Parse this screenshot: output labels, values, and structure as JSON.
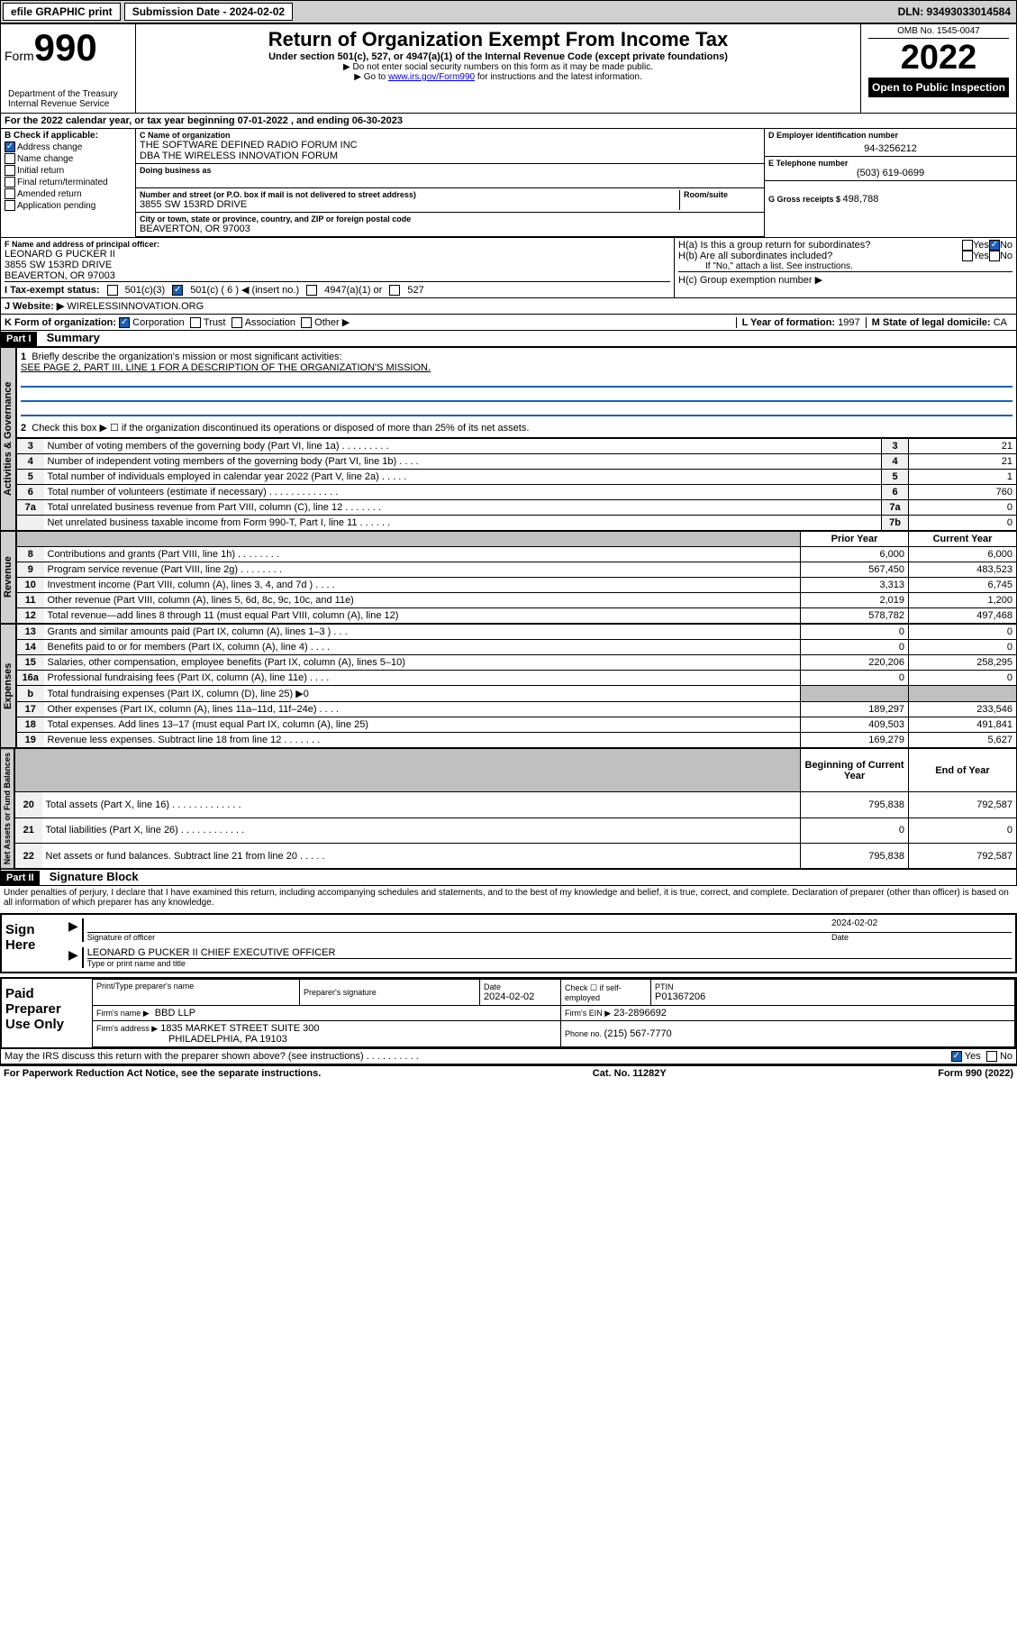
{
  "topbar": {
    "efile": "efile GRAPHIC print",
    "submission_label": "Submission Date - 2024-02-02",
    "dln_label": "DLN: 93493033014584"
  },
  "header": {
    "form_label": "Form",
    "form_num": "990",
    "title": "Return of Organization Exempt From Income Tax",
    "subtitle": "Under section 501(c), 527, or 4947(a)(1) of the Internal Revenue Code (except private foundations)",
    "note1": "▶ Do not enter social security numbers on this form as it may be made public.",
    "note2_pre": "▶ Go to ",
    "note2_link": "www.irs.gov/Form990",
    "note2_post": " for instructions and the latest information.",
    "dept": "Department of the Treasury\nInternal Revenue Service",
    "omb": "OMB No. 1545-0047",
    "year": "2022",
    "open_public": "Open to Public Inspection"
  },
  "section_a": {
    "period": "For the 2022 calendar year, or tax year beginning 07-01-2022 , and ending 06-30-2023",
    "check_label": "B Check if applicable:",
    "checks": [
      "Address change",
      "Name change",
      "Initial return",
      "Final return/terminated",
      "Amended return",
      "Application pending"
    ],
    "check_states": [
      "true",
      "false",
      "false",
      "false",
      "false",
      "false"
    ],
    "c_label": "C Name of organization",
    "org_name": "THE SOFTWARE DEFINED RADIO FORUM INC",
    "dba": "DBA THE WIRELESS INNOVATION FORUM",
    "dba_label": "Doing business as",
    "street_label": "Number and street (or P.O. box if mail is not delivered to street address)",
    "room_label": "Room/suite",
    "street": "3855 SW 153RD DRIVE",
    "city_label": "City or town, state or province, country, and ZIP or foreign postal code",
    "city": "BEAVERTON, OR  97003",
    "d_label": "D Employer identification number",
    "ein": "94-3256212",
    "e_label": "E Telephone number",
    "phone": "(503) 619-0699",
    "g_label": "G Gross receipts $ ",
    "gross": "498,788",
    "f_label": "F Name and address of principal officer:",
    "officer_name": "LEONARD G PUCKER II",
    "officer_addr1": "3855 SW 153RD DRIVE",
    "officer_addr2": "BEAVERTON, OR  97003",
    "ha_label": "H(a)  Is this a group return for subordinates?",
    "hb_label": "H(b)  Are all subordinates included?",
    "hb_note": "If \"No,\" attach a list. See instructions.",
    "hc_label": "H(c)  Group exemption number ▶",
    "yes": "Yes",
    "no": "No"
  },
  "tax_status": {
    "i_label": "I  Tax-exempt status:",
    "opt1": "501(c)(3)",
    "opt2": "501(c) ( 6 ) ◀ (insert no.)",
    "opt3": "4947(a)(1) or",
    "opt4": "527",
    "j_label": "J  Website: ▶",
    "website": "WIRELESSINNOVATION.ORG"
  },
  "form_org": {
    "k_label": "K Form of organization:",
    "opts": [
      "Corporation",
      "Trust",
      "Association",
      "Other ▶"
    ],
    "l_label": "L Year of formation: ",
    "l_val": "1997",
    "m_label": "M State of legal domicile: ",
    "m_val": "CA"
  },
  "part1": {
    "header": "Part I",
    "title": "Summary",
    "q1": "Briefly describe the organization's mission or most significant activities:",
    "q1_ans": "SEE PAGE 2, PART III, LINE 1 FOR A DESCRIPTION OF THE ORGANIZATION'S MISSION.",
    "q2": "Check this box ▶ ☐  if the organization discontinued its operations or disposed of more than 25% of its net assets.",
    "vert1": "Activities & Governance",
    "vert2": "Revenue",
    "vert3": "Expenses",
    "vert4": "Net Assets or Fund Balances",
    "gov_rows": [
      {
        "n": "3",
        "t": "Number of voting members of the governing body (Part VI, line 1a)  .  .  .  .  .  .  .  .  .",
        "c": "3",
        "v": "21"
      },
      {
        "n": "4",
        "t": "Number of independent voting members of the governing body (Part VI, line 1b)  .  .  .  .",
        "c": "4",
        "v": "21"
      },
      {
        "n": "5",
        "t": "Total number of individuals employed in calendar year 2022 (Part V, line 2a)  .  .  .  .  .",
        "c": "5",
        "v": "1"
      },
      {
        "n": "6",
        "t": "Total number of volunteers (estimate if necessary)  .  .  .  .  .  .  .  .  .  .  .  .  .",
        "c": "6",
        "v": "760"
      },
      {
        "n": "7a",
        "t": "Total unrelated business revenue from Part VIII, column (C), line 12  .  .  .  .  .  .  .",
        "c": "7a",
        "v": "0"
      },
      {
        "n": "",
        "t": "Net unrelated business taxable income from Form 990-T, Part I, line 11  .  .  .  .  .  .",
        "c": "7b",
        "v": "0"
      }
    ],
    "two_col_header": {
      "py": "Prior Year",
      "cy": "Current Year"
    },
    "rev_rows": [
      {
        "n": "8",
        "t": "Contributions and grants (Part VIII, line 1h)  .  .  .  .  .  .  .  .",
        "py": "6,000",
        "cy": "6,000"
      },
      {
        "n": "9",
        "t": "Program service revenue (Part VIII, line 2g)  .  .  .  .  .  .  .  .",
        "py": "567,450",
        "cy": "483,523"
      },
      {
        "n": "10",
        "t": "Investment income (Part VIII, column (A), lines 3, 4, and 7d )  .  .  .  .",
        "py": "3,313",
        "cy": "6,745"
      },
      {
        "n": "11",
        "t": "Other revenue (Part VIII, column (A), lines 5, 6d, 8c, 9c, 10c, and 11e)",
        "py": "2,019",
        "cy": "1,200"
      },
      {
        "n": "12",
        "t": "Total revenue—add lines 8 through 11 (must equal Part VIII, column (A), line 12)",
        "py": "578,782",
        "cy": "497,468"
      }
    ],
    "exp_rows": [
      {
        "n": "13",
        "t": "Grants and similar amounts paid (Part IX, column (A), lines 1–3 )  .  .  .",
        "py": "0",
        "cy": "0"
      },
      {
        "n": "14",
        "t": "Benefits paid to or for members (Part IX, column (A), line 4)  .  .  .  .",
        "py": "0",
        "cy": "0"
      },
      {
        "n": "15",
        "t": "Salaries, other compensation, employee benefits (Part IX, column (A), lines 5–10)",
        "py": "220,206",
        "cy": "258,295"
      },
      {
        "n": "16a",
        "t": "Professional fundraising fees (Part IX, column (A), line 11e)  .  .  .  .",
        "py": "0",
        "cy": "0"
      },
      {
        "n": "b",
        "t": "Total fundraising expenses (Part IX, column (D), line 25) ▶0",
        "py": "",
        "cy": ""
      },
      {
        "n": "17",
        "t": "Other expenses (Part IX, column (A), lines 11a–11d, 11f–24e)  .  .  .  .",
        "py": "189,297",
        "cy": "233,546"
      },
      {
        "n": "18",
        "t": "Total expenses. Add lines 13–17 (must equal Part IX, column (A), line 25)",
        "py": "409,503",
        "cy": "491,841"
      },
      {
        "n": "19",
        "t": "Revenue less expenses. Subtract line 18 from line 12  .  .  .  .  .  .  .",
        "py": "169,279",
        "cy": "5,627"
      }
    ],
    "net_header": {
      "py": "Beginning of Current Year",
      "cy": "End of Year"
    },
    "net_rows": [
      {
        "n": "20",
        "t": "Total assets (Part X, line 16)  .  .  .  .  .  .  .  .  .  .  .  .  .",
        "py": "795,838",
        "cy": "792,587"
      },
      {
        "n": "21",
        "t": "Total liabilities (Part X, line 26)  .  .  .  .  .  .  .  .  .  .  .  .",
        "py": "0",
        "cy": "0"
      },
      {
        "n": "22",
        "t": "Net assets or fund balances. Subtract line 21 from line 20  .  .  .  .  .",
        "py": "795,838",
        "cy": "792,587"
      }
    ]
  },
  "part2": {
    "header": "Part II",
    "title": "Signature Block",
    "declaration": "Under penalties of perjury, I declare that I have examined this return, including accompanying schedules and statements, and to the best of my knowledge and belief, it is true, correct, and complete. Declaration of preparer (other than officer) is based on all information of which preparer has any knowledge.",
    "sign_here": "Sign Here",
    "sig_officer_label": "Signature of officer",
    "date_label": "Date",
    "sig_date": "2024-02-02",
    "officer_name_title": "LEONARD G PUCKER II  CHIEF EXECUTIVE OFFICER",
    "type_name_label": "Type or print name and title",
    "paid_prep": "Paid Preparer Use Only",
    "prep_name_label": "Print/Type preparer's name",
    "prep_sig_label": "Preparer's signature",
    "prep_date": "2024-02-02",
    "check_if": "Check ☐ if self-employed",
    "ptin_label": "PTIN",
    "ptin": "P01367206",
    "firm_name_label": "Firm's name    ▶",
    "firm_name": "BBD LLP",
    "firm_ein_label": "Firm's EIN ▶",
    "firm_ein": "23-2896692",
    "firm_addr_label": "Firm's address ▶",
    "firm_addr1": "1835 MARKET STREET SUITE 300",
    "firm_addr2": "PHILADELPHIA, PA  19103",
    "phone_label": "Phone no. ",
    "phone": "(215) 567-7770",
    "may_irs": "May the IRS discuss this return with the preparer shown above? (see instructions)  .  .  .  .  .  .  .  .  .  .",
    "footer_left": "For Paperwork Reduction Act Notice, see the separate instructions.",
    "footer_mid": "Cat. No. 11282Y",
    "footer_right": "Form 990 (2022)"
  }
}
